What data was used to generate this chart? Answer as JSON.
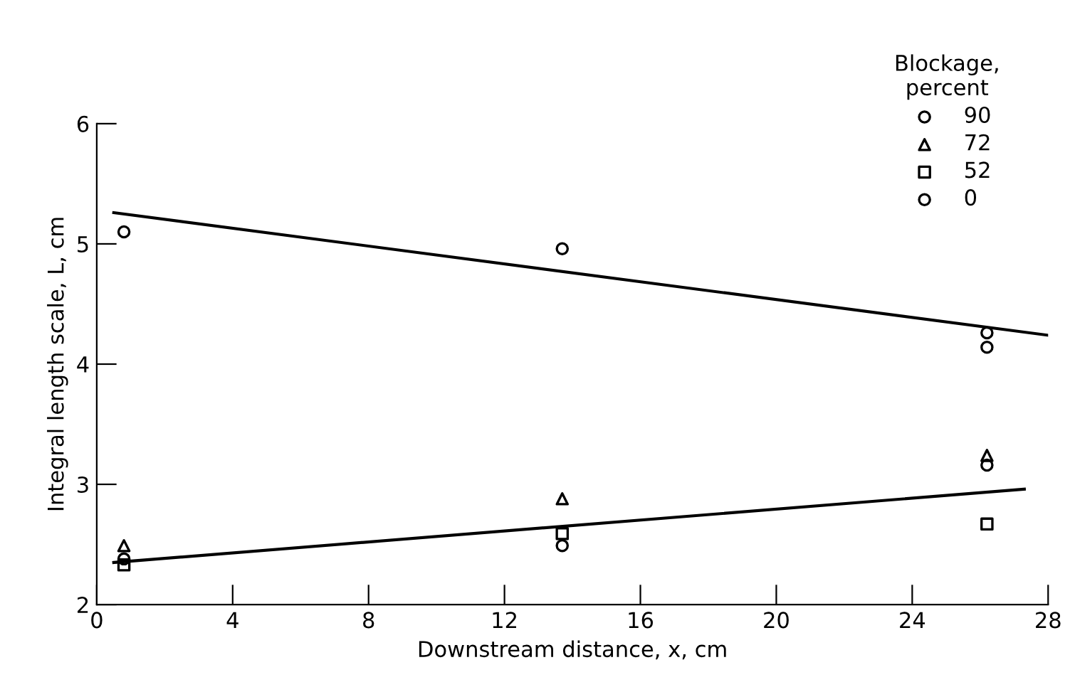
{
  "chart_data": {
    "type": "scatter",
    "xlabel": "Downstream distance, x, cm",
    "ylabel": "Integral length scale, L, cm",
    "legend_title": "Blockage,\npercent",
    "legend": "top right",
    "grid": false,
    "xlim": [
      0,
      28
    ],
    "ylim": [
      2,
      6
    ],
    "xticks": [
      0,
      4,
      8,
      12,
      16,
      20,
      24,
      28
    ],
    "yticks": [
      2,
      3,
      4,
      5,
      6
    ],
    "series": [
      {
        "name": "90",
        "color": "#000000",
        "marker": "circle",
        "x": [
          0.8,
          13.7,
          26.2
        ],
        "values": [
          2.38,
          2.49,
          3.16
        ]
      },
      {
        "name": "72",
        "color": "#000000",
        "marker": "triangle",
        "x": [
          0.8,
          13.7,
          26.2
        ],
        "values": [
          2.49,
          2.88,
          3.24
        ]
      },
      {
        "name": "52",
        "color": "#000000",
        "marker": "square",
        "x": [
          0.8,
          13.7,
          26.2
        ],
        "values": [
          2.33,
          2.59,
          2.67
        ]
      },
      {
        "name": "0",
        "color": "#000000",
        "marker": "circle",
        "x": [
          0.8,
          13.7,
          26.2,
          26.2
        ],
        "values": [
          5.1,
          4.96,
          4.26,
          4.14
        ]
      },
      {
        "type": "line",
        "color": "#000000",
        "marker": "none",
        "line_style": "solid",
        "x": [
          0.5,
          28
        ],
        "values": [
          5.26,
          4.24
        ]
      },
      {
        "type": "line",
        "color": "#000000",
        "marker": "none",
        "line_style": "solid",
        "x": [
          0.5,
          27.3
        ],
        "values": [
          2.35,
          2.96
        ]
      }
    ]
  }
}
